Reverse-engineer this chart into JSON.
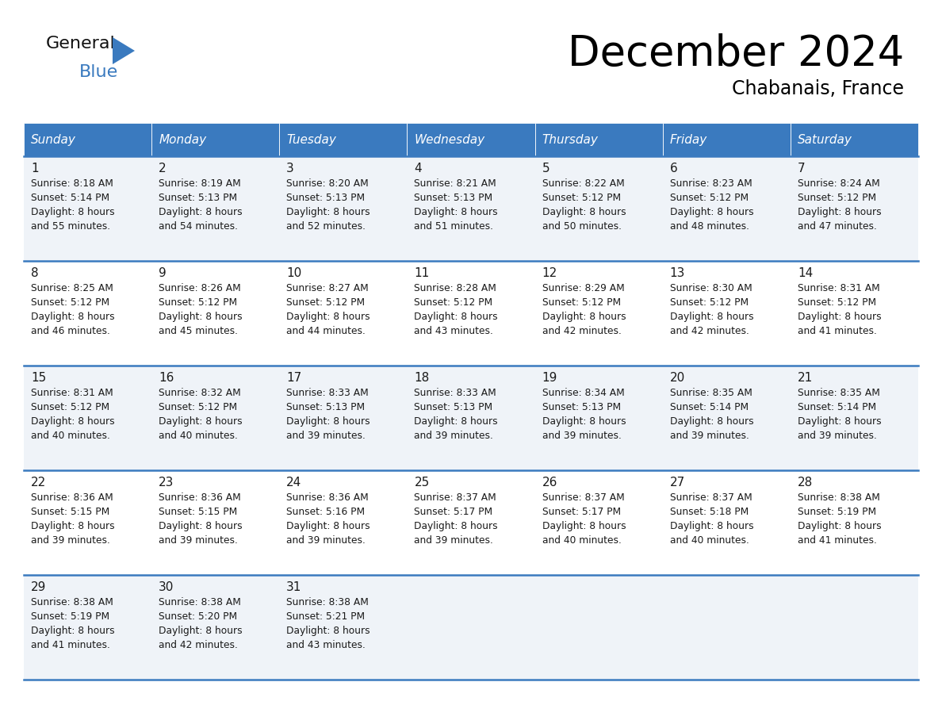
{
  "title": "December 2024",
  "subtitle": "Chabanais, France",
  "header_color": "#3a7abf",
  "header_text_color": "#ffffff",
  "cell_bg_light": "#eff3f8",
  "cell_bg_white": "#ffffff",
  "border_color": "#3a7abf",
  "text_color": "#1a1a1a",
  "days_of_week": [
    "Sunday",
    "Monday",
    "Tuesday",
    "Wednesday",
    "Thursday",
    "Friday",
    "Saturday"
  ],
  "weeks": [
    [
      {
        "day": "1",
        "sunrise": "8:18 AM",
        "sunset": "5:14 PM",
        "daylight_min": "and 55 minutes."
      },
      {
        "day": "2",
        "sunrise": "8:19 AM",
        "sunset": "5:13 PM",
        "daylight_min": "and 54 minutes."
      },
      {
        "day": "3",
        "sunrise": "8:20 AM",
        "sunset": "5:13 PM",
        "daylight_min": "and 52 minutes."
      },
      {
        "day": "4",
        "sunrise": "8:21 AM",
        "sunset": "5:13 PM",
        "daylight_min": "and 51 minutes."
      },
      {
        "day": "5",
        "sunrise": "8:22 AM",
        "sunset": "5:12 PM",
        "daylight_min": "and 50 minutes."
      },
      {
        "day": "6",
        "sunrise": "8:23 AM",
        "sunset": "5:12 PM",
        "daylight_min": "and 48 minutes."
      },
      {
        "day": "7",
        "sunrise": "8:24 AM",
        "sunset": "5:12 PM",
        "daylight_min": "and 47 minutes."
      }
    ],
    [
      {
        "day": "8",
        "sunrise": "8:25 AM",
        "sunset": "5:12 PM",
        "daylight_min": "and 46 minutes."
      },
      {
        "day": "9",
        "sunrise": "8:26 AM",
        "sunset": "5:12 PM",
        "daylight_min": "and 45 minutes."
      },
      {
        "day": "10",
        "sunrise": "8:27 AM",
        "sunset": "5:12 PM",
        "daylight_min": "and 44 minutes."
      },
      {
        "day": "11",
        "sunrise": "8:28 AM",
        "sunset": "5:12 PM",
        "daylight_min": "and 43 minutes."
      },
      {
        "day": "12",
        "sunrise": "8:29 AM",
        "sunset": "5:12 PM",
        "daylight_min": "and 42 minutes."
      },
      {
        "day": "13",
        "sunrise": "8:30 AM",
        "sunset": "5:12 PM",
        "daylight_min": "and 42 minutes."
      },
      {
        "day": "14",
        "sunrise": "8:31 AM",
        "sunset": "5:12 PM",
        "daylight_min": "and 41 minutes."
      }
    ],
    [
      {
        "day": "15",
        "sunrise": "8:31 AM",
        "sunset": "5:12 PM",
        "daylight_min": "and 40 minutes."
      },
      {
        "day": "16",
        "sunrise": "8:32 AM",
        "sunset": "5:12 PM",
        "daylight_min": "and 40 minutes."
      },
      {
        "day": "17",
        "sunrise": "8:33 AM",
        "sunset": "5:13 PM",
        "daylight_min": "and 39 minutes."
      },
      {
        "day": "18",
        "sunrise": "8:33 AM",
        "sunset": "5:13 PM",
        "daylight_min": "and 39 minutes."
      },
      {
        "day": "19",
        "sunrise": "8:34 AM",
        "sunset": "5:13 PM",
        "daylight_min": "and 39 minutes."
      },
      {
        "day": "20",
        "sunrise": "8:35 AM",
        "sunset": "5:14 PM",
        "daylight_min": "and 39 minutes."
      },
      {
        "day": "21",
        "sunrise": "8:35 AM",
        "sunset": "5:14 PM",
        "daylight_min": "and 39 minutes."
      }
    ],
    [
      {
        "day": "22",
        "sunrise": "8:36 AM",
        "sunset": "5:15 PM",
        "daylight_min": "and 39 minutes."
      },
      {
        "day": "23",
        "sunrise": "8:36 AM",
        "sunset": "5:15 PM",
        "daylight_min": "and 39 minutes."
      },
      {
        "day": "24",
        "sunrise": "8:36 AM",
        "sunset": "5:16 PM",
        "daylight_min": "and 39 minutes."
      },
      {
        "day": "25",
        "sunrise": "8:37 AM",
        "sunset": "5:17 PM",
        "daylight_min": "and 39 minutes."
      },
      {
        "day": "26",
        "sunrise": "8:37 AM",
        "sunset": "5:17 PM",
        "daylight_min": "and 40 minutes."
      },
      {
        "day": "27",
        "sunrise": "8:37 AM",
        "sunset": "5:18 PM",
        "daylight_min": "and 40 minutes."
      },
      {
        "day": "28",
        "sunrise": "8:38 AM",
        "sunset": "5:19 PM",
        "daylight_min": "and 41 minutes."
      }
    ],
    [
      {
        "day": "29",
        "sunrise": "8:38 AM",
        "sunset": "5:19 PM",
        "daylight_min": "and 41 minutes."
      },
      {
        "day": "30",
        "sunrise": "8:38 AM",
        "sunset": "5:20 PM",
        "daylight_min": "and 42 minutes."
      },
      {
        "day": "31",
        "sunrise": "8:38 AM",
        "sunset": "5:21 PM",
        "daylight_min": "and 43 minutes."
      },
      null,
      null,
      null,
      null
    ]
  ]
}
